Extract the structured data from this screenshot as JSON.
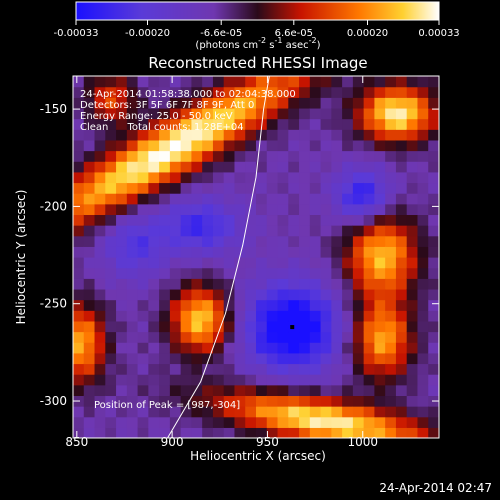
{
  "chart_data": {
    "type": "heatmap",
    "title": "Reconstructed RHESSI Image",
    "xlabel": "Heliocentric X (arcsec)",
    "ylabel": "Heliocentric Y (arcsec)",
    "xlim": [
      848,
      1040
    ],
    "ylim": [
      -319,
      -133
    ],
    "xticks": [
      850,
      900,
      950,
      1000
    ],
    "yticks": [
      -150,
      -200,
      -250,
      -300
    ],
    "colorbar": {
      "label_html": "(photons cm<tspan dy='-5' font-size='8'>-2</tspan><tspan dy='5'> s</tspan><tspan dy='-5' font-size='8'>-1</tspan><tspan dy='5'> asec</tspan><tspan dy='-5' font-size='8'>-2</tspan><tspan dy='5'>)</tspan>",
      "range": [
        -0.00033,
        0.00033
      ],
      "ticks_lower": [
        {
          "value": -0.00033,
          "label": "-0.00033"
        },
        {
          "value": -0.0002,
          "label": "-0.00020"
        },
        {
          "value": 0.0002,
          "label": "0.00020"
        },
        {
          "value": 0.00033,
          "label": "0.00033"
        }
      ],
      "ticks_upper": [
        {
          "value": -6.6e-05,
          "label": "-6.6e-05"
        },
        {
          "value": 6.6e-05,
          "label": "6.6e-05"
        }
      ]
    },
    "annotations": [
      "24-Apr-2014 01:58:38.000 to 02:04:38.000",
      "Detectors: 3F 5F 6F 7F 8F 9F, Att 0",
      "Energy Range: 25.0 - 50.0 keV",
      "Clean      Total counts: 1.28E+04"
    ],
    "peak_label": "Position of Peak = [987,-304]",
    "marker": {
      "x": 963,
      "y": -262
    },
    "limb_curve": [
      [
        897,
        -320
      ],
      [
        915,
        -290
      ],
      [
        928,
        -255
      ],
      [
        937,
        -220
      ],
      [
        944,
        -185
      ],
      [
        948,
        -150
      ],
      [
        951,
        -133
      ]
    ],
    "sources": [
      {
        "x": 900,
        "y": -170,
        "sx": 60,
        "sy": 10,
        "angle": 30,
        "amp": 1.0
      },
      {
        "x": 1018,
        "y": -152,
        "sx": 14,
        "sy": 10,
        "angle": 0,
        "amp": 0.95
      },
      {
        "x": 915,
        "y": -258,
        "sx": 11,
        "sy": 12,
        "angle": 0,
        "amp": 0.85
      },
      {
        "x": 1010,
        "y": -225,
        "sx": 13,
        "sy": 15,
        "angle": 0,
        "amp": 0.8
      },
      {
        "x": 1010,
        "y": -268,
        "sx": 11,
        "sy": 14,
        "angle": 0,
        "amp": 0.75
      },
      {
        "x": 980,
        "y": -310,
        "sx": 40,
        "sy": 8,
        "angle": -10,
        "amp": 0.95
      },
      {
        "x": 852,
        "y": -270,
        "sx": 9,
        "sy": 14,
        "angle": 0,
        "amp": 0.75
      },
      {
        "x": 868,
        "y": -145,
        "sx": 9,
        "sy": 9,
        "angle": 0,
        "amp": 0.5
      },
      {
        "x": 963,
        "y": -262,
        "sx": 18,
        "sy": 16,
        "angle": 0,
        "amp": -0.75
      },
      {
        "x": 1000,
        "y": -195,
        "sx": 10,
        "sy": 10,
        "angle": 0,
        "amp": -0.55
      },
      {
        "x": 915,
        "y": -210,
        "sx": 15,
        "sy": 10,
        "angle": 0,
        "amp": -0.45
      },
      {
        "x": 880,
        "y": -220,
        "sx": 12,
        "sy": 12,
        "angle": 0,
        "amp": -0.35
      }
    ]
  },
  "timestamp": "24-Apr-2014 02:47"
}
